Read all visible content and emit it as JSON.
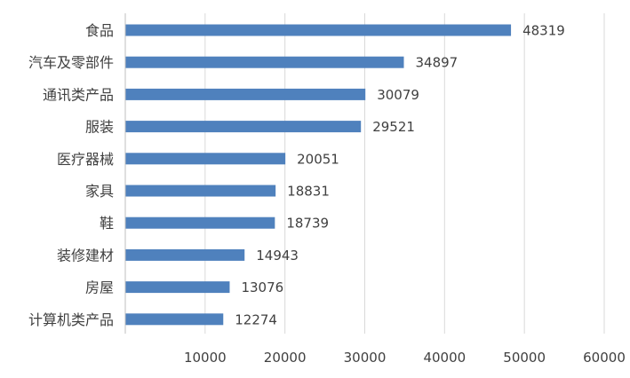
{
  "chart_data": {
    "type": "bar",
    "orientation": "horizontal",
    "categories": [
      "食品",
      "汽车及零部件",
      "通讯类产品",
      "服装",
      "医疗器械",
      "家具",
      "鞋",
      "装修建材",
      "房屋",
      "计算机类产品"
    ],
    "values": [
      48319,
      34897,
      30079,
      29521,
      20051,
      18831,
      18739,
      14943,
      13076,
      12274
    ],
    "value_labels": [
      "48319",
      "34897",
      "30079",
      "29521",
      "20051",
      "18831",
      "18739",
      "14943",
      "13076",
      "12274"
    ],
    "xlim": [
      0,
      60000
    ],
    "x_ticks": [
      10000,
      20000,
      30000,
      40000,
      50000,
      60000
    ],
    "x_tick_labels": [
      "10000",
      "20000",
      "30000",
      "40000",
      "50000",
      "60000"
    ],
    "grid": "vertical",
    "legend": "none",
    "title": "",
    "xlabel": "",
    "ylabel": ""
  },
  "colors": {
    "bar": "#4F81BD",
    "grid": "#D9D9D9",
    "axis": "#BFBFBF",
    "text": "#404040"
  }
}
